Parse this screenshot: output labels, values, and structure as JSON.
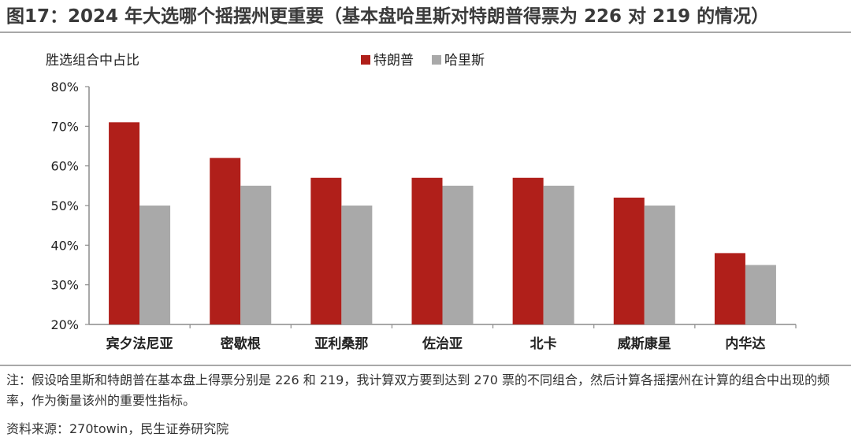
{
  "title": "图17：2024 年大选哪个摇摆州更重要（基本盘哈里斯对特朗普得票为 226 对 219 的情况）",
  "note": "注：假设哈里斯和特朗普在基本盘上得票分别是 226 和 219，我计算双方要到达到 270 票的不同组合，然后计算各摇摆州在计算的组合中出现的频率，作为衡量该州的重要性指标。",
  "source": "资料来源：270towin，民生证券研究院",
  "chart_data": {
    "type": "bar",
    "ylabel": "胜选组合中占比",
    "categories": [
      "宾夕法尼亚",
      "密歇根",
      "亚利桑那",
      "佐治亚",
      "北卡",
      "威斯康星",
      "内华达"
    ],
    "series": [
      {
        "name": "特朗普",
        "color": "#b01f1a",
        "values": [
          71,
          62,
          57,
          57,
          57,
          52,
          38
        ]
      },
      {
        "name": "哈里斯",
        "color": "#a9a9a9",
        "values": [
          50,
          55,
          50,
          55,
          55,
          50,
          35
        ]
      }
    ],
    "ylim": [
      20,
      80
    ],
    "yticks": [
      20,
      30,
      40,
      50,
      60,
      70,
      80
    ],
    "ytick_labels": [
      "20%",
      "30%",
      "40%",
      "50%",
      "60%",
      "70%",
      "80%"
    ],
    "grid": false,
    "legend_position": "top-center"
  }
}
